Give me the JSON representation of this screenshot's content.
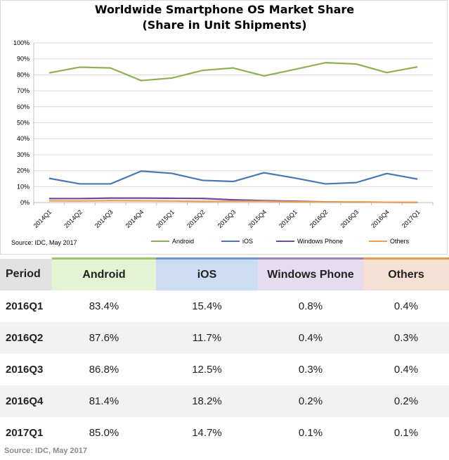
{
  "chart_data": {
    "type": "line",
    "title": "Worldwide Smartphone OS Market Share",
    "subtitle": "(Share in Unit Shipments)",
    "categories": [
      "2014Q1",
      "2014Q2",
      "2014Q3",
      "2014Q4",
      "2015Q1",
      "2015Q2",
      "2015Q3",
      "2015Q4",
      "2016Q1",
      "2016Q2",
      "2016Q3",
      "2016Q4",
      "2017Q1"
    ],
    "series": [
      {
        "name": "Android",
        "color": "#8eb055",
        "values": [
          81.2,
          84.8,
          84.3,
          76.4,
          78.0,
          82.8,
          84.3,
          79.3,
          83.4,
          87.6,
          86.8,
          81.4,
          85.0
        ]
      },
      {
        "name": "iOS",
        "color": "#4a76b5",
        "values": [
          15.2,
          11.7,
          11.7,
          19.7,
          18.3,
          13.9,
          13.2,
          18.7,
          15.4,
          11.7,
          12.5,
          18.2,
          14.7
        ]
      },
      {
        "name": "Windows Phone",
        "color": "#6e4a9e",
        "values": [
          2.5,
          2.5,
          2.8,
          2.8,
          2.7,
          2.6,
          1.7,
          1.2,
          0.8,
          0.4,
          0.3,
          0.2,
          0.1
        ]
      },
      {
        "name": "Others",
        "color": "#f0a050",
        "values": [
          1.1,
          1.0,
          1.2,
          1.1,
          1.0,
          0.7,
          0.8,
          0.8,
          0.4,
          0.3,
          0.4,
          0.2,
          0.1
        ]
      }
    ],
    "y_ticks": [
      "0%",
      "10%",
      "20%",
      "30%",
      "40%",
      "50%",
      "60%",
      "70%",
      "80%",
      "90%",
      "100%"
    ],
    "ylim": [
      0,
      100
    ],
    "grid": true,
    "legend_position": "bottom",
    "source": "Source: IDC, May 2017"
  },
  "table": {
    "headers": {
      "period": "Period",
      "android": "Android",
      "ios": "iOS",
      "wp": "Windows Phone",
      "others": "Others"
    },
    "rows": [
      {
        "period": "2016Q1",
        "android": "83.4%",
        "ios": "15.4%",
        "wp": "0.8%",
        "others": "0.4%"
      },
      {
        "period": "2016Q2",
        "android": "87.6%",
        "ios": "11.7%",
        "wp": "0.4%",
        "others": "0.3%"
      },
      {
        "period": "2016Q3",
        "android": "86.8%",
        "ios": "12.5%",
        "wp": "0.3%",
        "others": "0.4%"
      },
      {
        "period": "2016Q4",
        "android": "81.4%",
        "ios": "18.2%",
        "wp": "0.2%",
        "others": "0.2%"
      },
      {
        "period": "2017Q1",
        "android": "85.0%",
        "ios": "14.7%",
        "wp": "0.1%",
        "others": "0.1%"
      }
    ],
    "source": "Source: IDC, May 2017"
  }
}
